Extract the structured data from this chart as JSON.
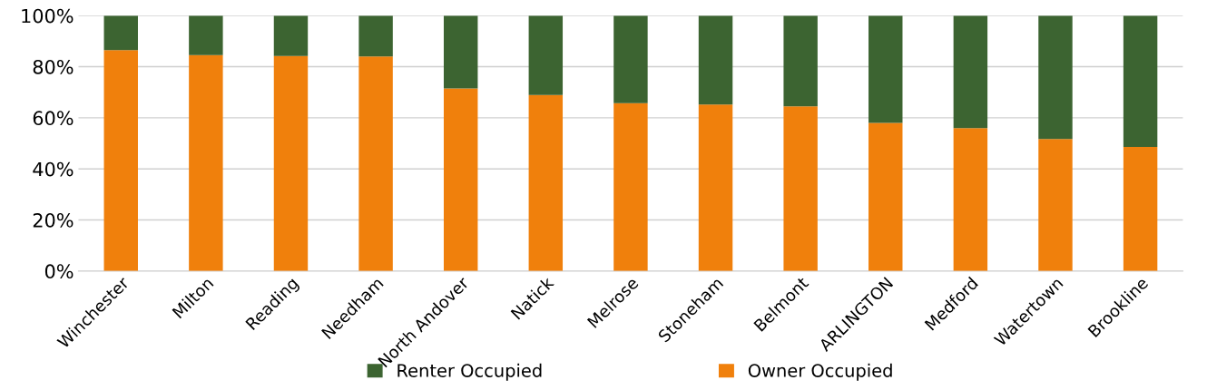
{
  "chart_data": {
    "type": "bar",
    "stacked": true,
    "categories": [
      "Winchester",
      "Milton",
      "Reading",
      "Needham",
      "North Andover",
      "Natick",
      "Melrose",
      "Stoneham",
      "Belmont",
      "ARLINGTON",
      "Medford",
      "Watertown",
      "Brookline"
    ],
    "series": [
      {
        "name": "Owner Occupied",
        "color": "#f0800c",
        "values": [
          86.5,
          84.5,
          84.2,
          84.0,
          71.5,
          68.9,
          65.7,
          65.2,
          64.5,
          58.0,
          56.0,
          51.7,
          48.6
        ]
      },
      {
        "name": "Renter Occupied",
        "color": "#3c6431",
        "values": [
          13.5,
          15.5,
          15.8,
          16.0,
          28.5,
          31.1,
          34.3,
          34.8,
          35.5,
          42.0,
          44.0,
          48.3,
          51.4
        ]
      }
    ],
    "ylim": [
      0,
      100
    ],
    "yticks": [
      {
        "value": 0,
        "label": "0%"
      },
      {
        "value": 20,
        "label": "20%"
      },
      {
        "value": 40,
        "label": "40%"
      },
      {
        "value": 60,
        "label": "60%"
      },
      {
        "value": 80,
        "label": "80%"
      },
      {
        "value": 100,
        "label": "100%"
      }
    ],
    "grid": "y",
    "legend": "bottom"
  }
}
